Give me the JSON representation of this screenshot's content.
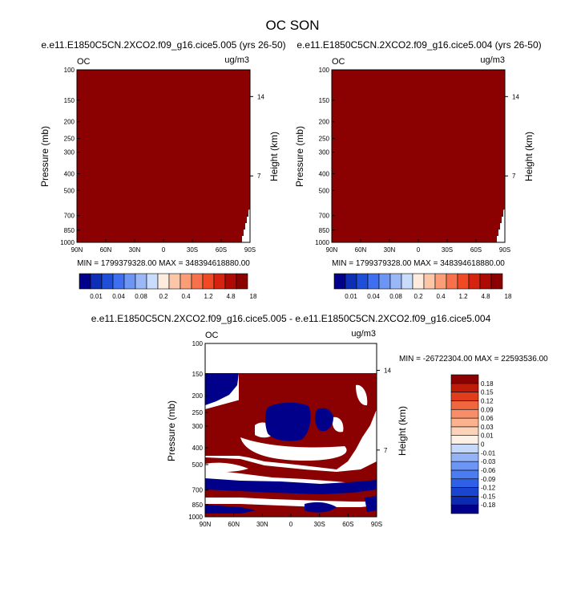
{
  "figure_title": "OC SON",
  "colors": {
    "dark_red": "#8b0000",
    "dark_blue": "#00008b",
    "white": "#ffffff"
  },
  "top_colorbar": {
    "colors": [
      "#00008b",
      "#0d2fb5",
      "#1f4fd9",
      "#3d6ff0",
      "#6c95f4",
      "#9ab8f8",
      "#c9dcfb",
      "#fdebdd",
      "#fcc7a9",
      "#fb9d76",
      "#f7724c",
      "#ef4a24",
      "#d6230f",
      "#ad0a05",
      "#8b0000"
    ],
    "labels": [
      "0.01",
      "0.04",
      "0.08",
      "0.2",
      "0.4",
      "1.2",
      "4.8",
      "18"
    ]
  },
  "diff_colorbar": {
    "colors": [
      "#00008b",
      "#0c2ab1",
      "#1a45d0",
      "#2f61e8",
      "#4a7cf2",
      "#6c95f4",
      "#94b3f7",
      "#c6d9fb",
      "#fdf0e6",
      "#fcd3b8",
      "#fbb28f",
      "#f78d69",
      "#f0663f",
      "#e03d1d",
      "#c01a09",
      "#8b0000"
    ],
    "labels": [
      "0.18",
      "0.15",
      "0.12",
      "0.09",
      "0.06",
      "0.03",
      "0.01",
      "0",
      "-0.01",
      "-0.03",
      "-0.06",
      "-0.09",
      "-0.12",
      "-0.15",
      "-0.18"
    ]
  },
  "chart_data": [
    {
      "type": "heatmap",
      "title": "e.e11.E1850C5CN.2XCO2.f09_g16.cice5.005 (yrs 26-50)",
      "left_label": "OC",
      "right_label": "ug/m3",
      "ylabel": "Pressure (mb)",
      "ylabel_right": "Height (km)",
      "x_ticks": [
        "90N",
        "60N",
        "30N",
        "0",
        "30S",
        "60S",
        "90S"
      ],
      "y_ticks": [
        100,
        150,
        200,
        250,
        300,
        400,
        500,
        700,
        850,
        1000
      ],
      "y_right_ticks": [
        "14",
        "7"
      ],
      "ylim": [
        100,
        1000
      ],
      "stats": "MIN = 1799379328.00  MAX = 348394618880.00"
    },
    {
      "type": "heatmap",
      "title": "e.e11.E1850C5CN.2XCO2.f09_g16.cice5.004 (yrs 26-50)",
      "left_label": "OC",
      "right_label": "ug/m3",
      "ylabel": "Pressure (mb)",
      "ylabel_right": "Height (km)",
      "x_ticks": [
        "90N",
        "60N",
        "30N",
        "0",
        "30S",
        "60S",
        "90S"
      ],
      "y_ticks": [
        100,
        150,
        200,
        250,
        300,
        400,
        500,
        700,
        850,
        1000
      ],
      "y_right_ticks": [
        "14",
        "7"
      ],
      "ylim": [
        100,
        1000
      ],
      "stats": "MIN = 1799379328.00  MAX = 348394618880.00"
    },
    {
      "type": "heatmap",
      "title": "e.e11.E1850C5CN.2XCO2.f09_g16.cice5.005 - e.e11.E1850C5CN.2XCO2.f09_g16.cice5.004",
      "left_label": "OC",
      "right_label": "ug/m3",
      "ylabel": "Pressure (mb)",
      "ylabel_right": "Height (km)",
      "x_ticks": [
        "90N",
        "60N",
        "30N",
        "0",
        "30S",
        "60S",
        "90S"
      ],
      "y_ticks": [
        100,
        150,
        200,
        250,
        300,
        400,
        500,
        700,
        850,
        1000
      ],
      "y_right_ticks": [
        "14",
        "7"
      ],
      "ylim": [
        100,
        1000
      ],
      "stats": "MIN = -26722304.00  MAX = 22593536.00"
    }
  ]
}
